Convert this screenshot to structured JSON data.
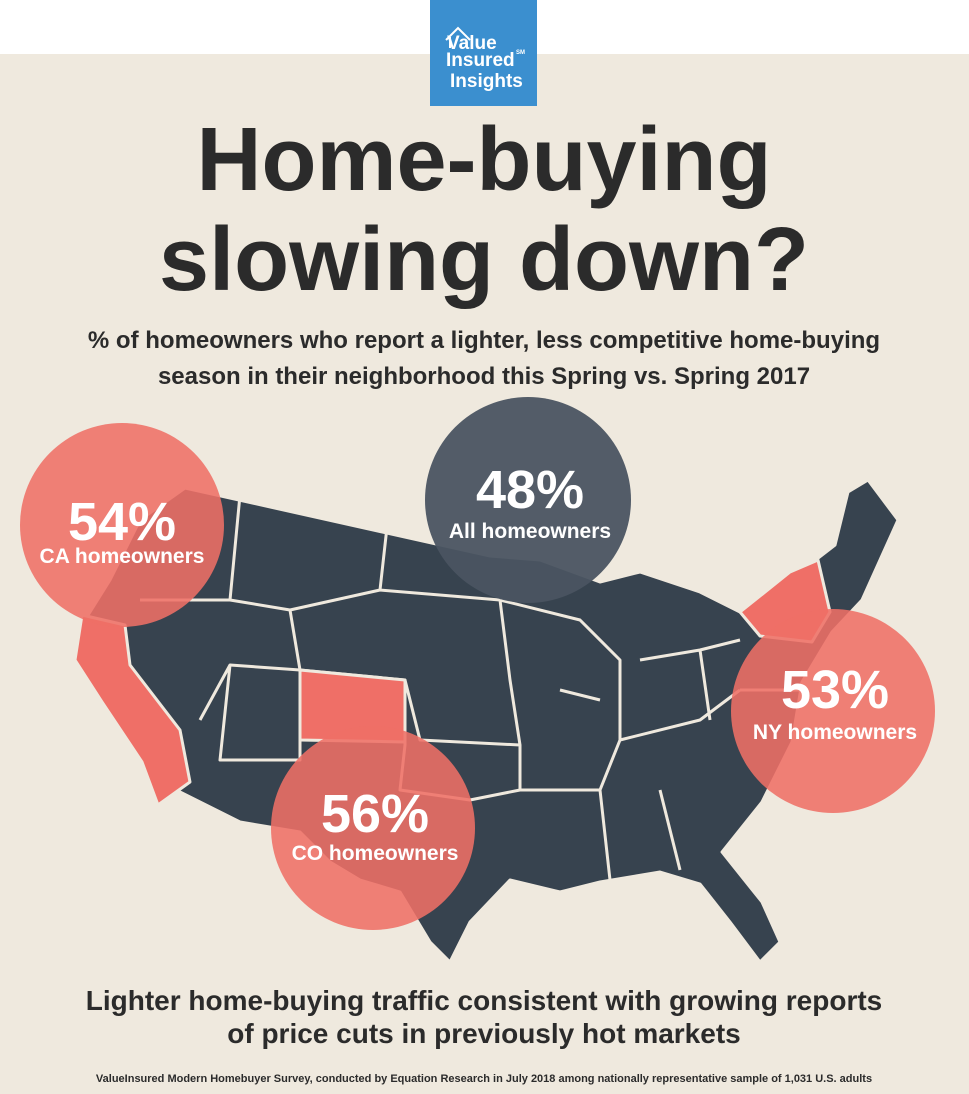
{
  "logo": {
    "lines": [
      "Value",
      "Insured",
      "Insights"
    ],
    "mark": "SM"
  },
  "title": {
    "lines": [
      "Home-buying",
      "slowing down?"
    ]
  },
  "subtitle": {
    "lines": [
      "% of homeowners who report a lighter, less competitive home-buying",
      "season in their neighborhood this Spring vs. Spring 2017"
    ]
  },
  "callouts": [
    {
      "value": "54%",
      "label": "CA homeowners"
    },
    {
      "value": "48%",
      "label": "All homeowners"
    },
    {
      "value": "53%",
      "label": "NY homeowners"
    },
    {
      "value": "56%",
      "label": "CO homeowners"
    }
  ],
  "conclusion": {
    "lines": [
      "Lighter home-buying traffic consistent with growing reports",
      "of price cuts in previously hot markets"
    ]
  },
  "source": "ValueInsured Modern Homebuyer Survey, conducted by Equation Research in July 2018 among nationally representative sample of 1,031 U.S. adults"
}
